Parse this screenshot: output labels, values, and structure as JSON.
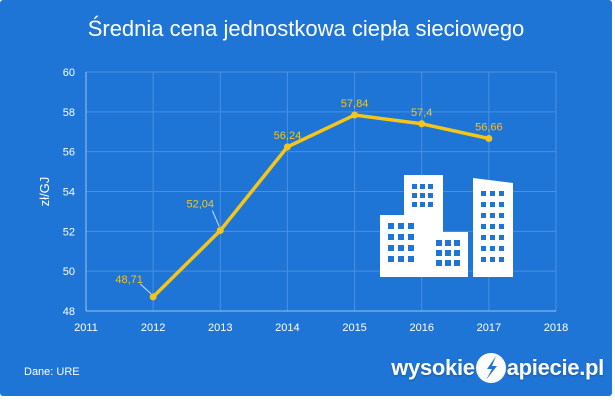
{
  "title": "Średnia cena jednostkowa ciepła sieciowego",
  "source": "Dane: URE",
  "brand": {
    "left": "wysokie",
    "right": "apiecie.pl"
  },
  "colors": {
    "background": "#1f75d6",
    "line": "#f5c518",
    "label": "#f5c518",
    "grid": "#4a8fe0",
    "text": "#ffffff"
  },
  "icons": {
    "buildings": "buildings-icon",
    "logo": "lightning-n-logo-icon"
  },
  "chart_data": {
    "type": "line",
    "title": "Średnia cena jednostkowa ciepła sieciowego",
    "xlabel": "",
    "ylabel": "zł/GJ",
    "xlim": [
      2011,
      2018
    ],
    "ylim": [
      48,
      60
    ],
    "x_ticks": [
      "2011",
      "2012",
      "2013",
      "2014",
      "2015",
      "2016",
      "2017",
      "2018"
    ],
    "y_ticks": [
      "48",
      "50",
      "52",
      "54",
      "56",
      "58",
      "60"
    ],
    "grid": true,
    "series": [
      {
        "x": [
          2012,
          2013,
          2014,
          2015,
          2016,
          2017
        ],
        "values": [
          48.71,
          52.04,
          56.24,
          57.84,
          57.4,
          56.66
        ],
        "labels": [
          "48,71",
          "52,04",
          "56,24",
          "57,84",
          "57,4",
          "56,66"
        ]
      }
    ]
  }
}
